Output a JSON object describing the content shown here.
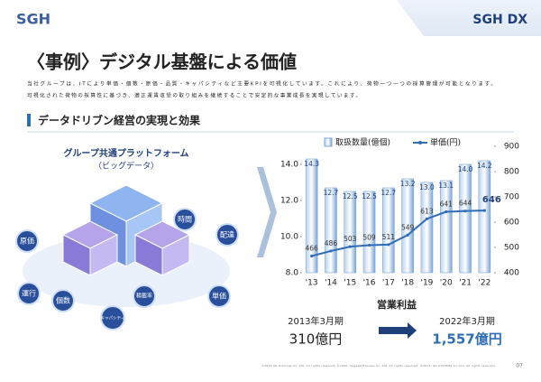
{
  "logo": "SGH",
  "brand": "SGH DX",
  "title": "〈事例〉デジタル基盤による価値",
  "paragraph": [
    "当社グループは、ITにより単価・個数・原価・品質・キャパシティなど主要KPIを可視化しています。これにより、荷物一つ一つの採算管理が可能となります。",
    "可視化された荷物の採算性に基づき、適正運賃収受の取り組みを継続することで安定的な事業成長を実現しています。"
  ],
  "section": "データドリブン経営の実現と効果",
  "platform": [
    "グループ共通プラットフォーム",
    "（ビッグデータ）"
  ],
  "kpis": [
    "時間",
    "配達",
    "原価",
    "運行",
    "個数",
    "積載率",
    "単価",
    "キャパシティ"
  ],
  "chart_data": {
    "type": "bar_line",
    "categories": [
      "'13",
      "'14",
      "'15",
      "'16",
      "'17",
      "'18",
      "'19",
      "'20",
      "'21",
      "'22"
    ],
    "series": [
      {
        "name": "取扱数量(億個)",
        "color": "#7aa7d8",
        "values": [
          14.3,
          12.7,
          12.5,
          12.5,
          12.7,
          13.2,
          13.0,
          13.1,
          14.0,
          14.2
        ],
        "value_labels": [
          "14.3",
          "12.7",
          "12.5",
          "12.5",
          "12.7",
          "13.2",
          "13.0",
          "13.1",
          "14.0",
          "14.2"
        ]
      },
      {
        "name": "単価(円)",
        "color": "#2f6db5",
        "axis": "y2",
        "values": [
          466,
          486,
          503,
          509,
          511,
          549,
          613,
          641,
          644,
          646
        ]
      }
    ],
    "ylim": [
      8,
      15
    ],
    "yticks": [
      {
        "value": 8,
        "label": "8.0"
      },
      {
        "value": 10,
        "label": "10.0"
      },
      {
        "value": 12,
        "label": "12.0"
      },
      {
        "value": 14,
        "label": "14.0"
      }
    ],
    "y2lim": [
      400,
      900
    ],
    "y2ticks": [
      400,
      500,
      600,
      700,
      800,
      900
    ]
  },
  "profit": {
    "title": "営業利益",
    "from_label": "2013年3月期",
    "from_value": "310億円",
    "to_label": "2022年3月期",
    "to_value": "1,557億円"
  },
  "footer": "©2020 SG Holdings Co.,Ltd. All rights reserved.  ©1990- Sagawa Express Co.,Ltd. All rights reserved.  ©2013- SG SYSTEMS Co.,Ltd. All rights reserved.",
  "page": "07"
}
